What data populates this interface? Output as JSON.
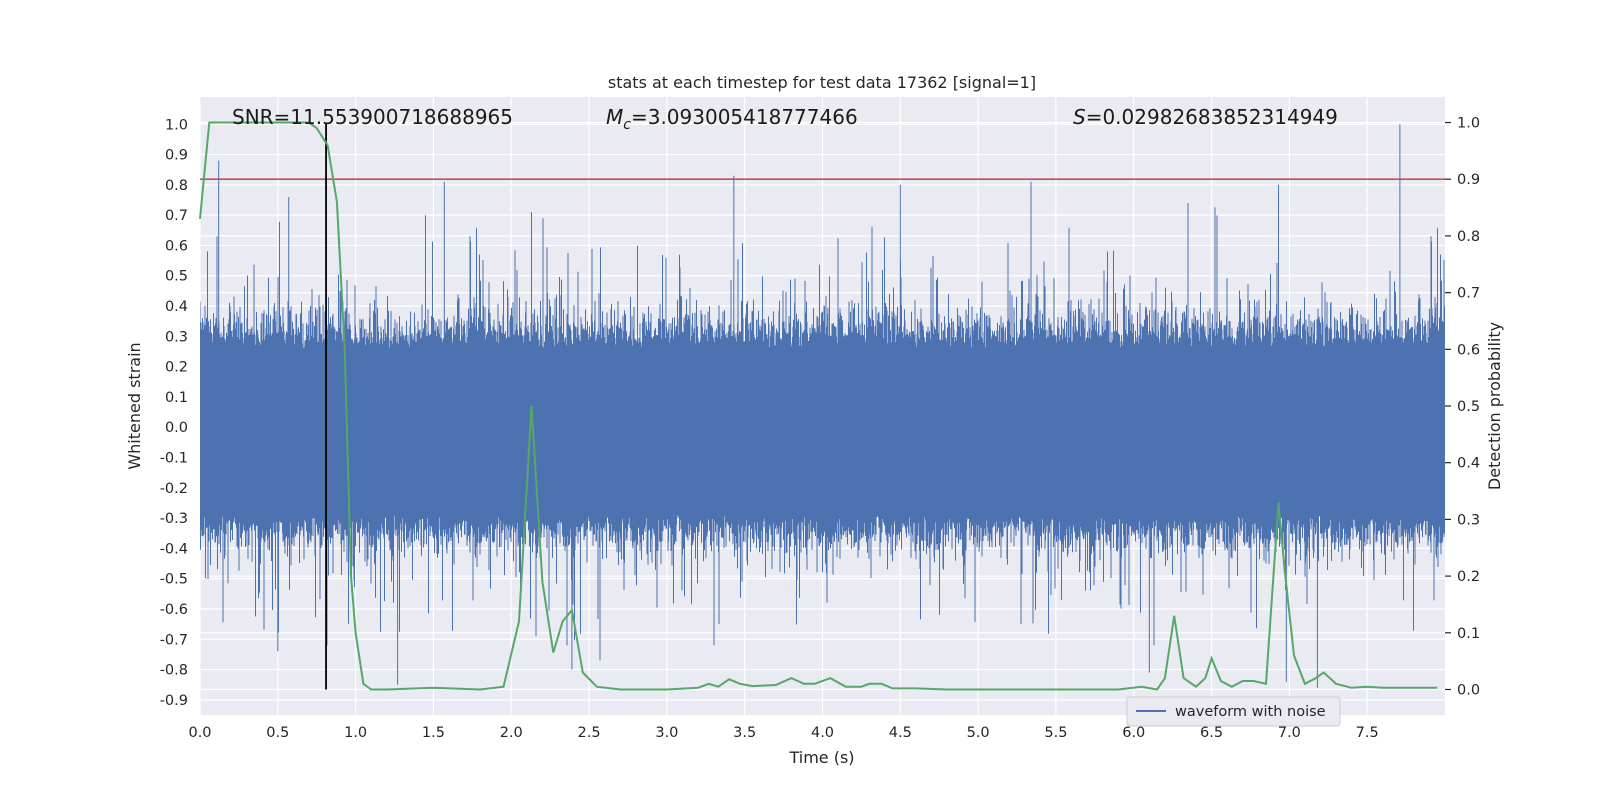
{
  "chart_data": {
    "type": "line",
    "title": "stats at each timestep for test data 17362 [signal=1]",
    "xlabel": "Time (s)",
    "ylabel": "Whitened strain",
    "y2label": "Detection probability",
    "xlim": [
      0.0,
      8.0
    ],
    "ylim": [
      -0.95,
      1.09
    ],
    "y2lim": [
      -0.045,
      1.045
    ],
    "grid": true,
    "legend_placement": "lower-right",
    "x_ticks": [
      "0.0",
      "0.5",
      "1.0",
      "1.5",
      "2.0",
      "2.5",
      "3.0",
      "3.5",
      "4.0",
      "4.5",
      "5.0",
      "5.5",
      "6.0",
      "6.5",
      "7.0",
      "7.5"
    ],
    "y_ticks": [
      "1.0",
      "0.9",
      "0.8",
      "0.7",
      "0.6",
      "0.5",
      "0.4",
      "0.3",
      "0.2",
      "0.1",
      "0.0",
      "-0.1",
      "-0.2",
      "-0.3",
      "-0.4",
      "-0.5",
      "-0.6",
      "-0.7",
      "-0.8",
      "-0.9"
    ],
    "y2_ticks": [
      "1.0",
      "0.9",
      "0.8",
      "0.7",
      "0.6",
      "0.5",
      "0.4",
      "0.3",
      "0.2",
      "0.1",
      "0.0"
    ],
    "annotations": {
      "snr": "SNR=11.553900718688965",
      "mc_symbol": "M",
      "mc_subscript": "c",
      "mc_value": "=3.093005418777466",
      "s_symbol": "S",
      "s_value": "=0.02982683852314949"
    },
    "threshold_y2": 0.9,
    "marker_time": 0.81,
    "colors": {
      "waveform": "#4c72b0",
      "probability": "#55a868",
      "threshold": "#c44e52",
      "marker": "#000000",
      "plot_bg": "#eaeaf2",
      "grid": "#ffffff"
    },
    "series": [
      {
        "name": "waveform with noise",
        "summary": {
          "peaks_positive": [
            [
              0.12,
              0.88
            ],
            [
              1.57,
              0.81
            ],
            [
              3.43,
              0.83
            ],
            [
              4.5,
              0.8
            ],
            [
              5.34,
              0.81
            ],
            [
              6.93,
              0.8
            ],
            [
              7.71,
              1.0
            ],
            [
              2.13,
              0.71
            ],
            [
              0.57,
              0.76
            ]
          ],
          "peaks_negative": [
            [
              0.5,
              -0.74
            ],
            [
              1.27,
              -0.85
            ],
            [
              2.39,
              -0.8
            ],
            [
              2.57,
              -0.77
            ],
            [
              6.1,
              -0.81
            ],
            [
              6.98,
              -0.84
            ],
            [
              7.18,
              -0.86
            ]
          ]
        }
      },
      {
        "name": "",
        "x": [
          0.0,
          0.06,
          0.1,
          0.2,
          0.3,
          0.4,
          0.5,
          0.6,
          0.7,
          0.75,
          0.82,
          0.88,
          0.93,
          0.97,
          1.0,
          1.05,
          1.1,
          1.2,
          1.5,
          1.8,
          1.95,
          2.05,
          2.13,
          2.2,
          2.27,
          2.33,
          2.39,
          2.46,
          2.55,
          2.7,
          3.0,
          3.2,
          3.27,
          3.33,
          3.4,
          3.47,
          3.55,
          3.7,
          3.8,
          3.88,
          3.95,
          4.05,
          4.15,
          4.25,
          4.3,
          4.38,
          4.45,
          4.6,
          4.8,
          5.2,
          5.9,
          6.05,
          6.15,
          6.2,
          6.26,
          6.32,
          6.4,
          6.46,
          6.5,
          6.56,
          6.63,
          6.7,
          6.77,
          6.85,
          6.93,
          6.97,
          7.03,
          7.1,
          7.17,
          7.22,
          7.3,
          7.4,
          7.5,
          7.6,
          7.7,
          7.8,
          7.95
        ],
        "values": [
          0.83,
          1.0,
          1.0,
          1.0,
          1.0,
          1.0,
          1.0,
          1.0,
          1.0,
          0.99,
          0.96,
          0.86,
          0.6,
          0.2,
          0.1,
          0.01,
          0.0,
          0.0,
          0.003,
          0.0,
          0.005,
          0.12,
          0.5,
          0.19,
          0.065,
          0.12,
          0.14,
          0.03,
          0.005,
          0.0,
          0.0,
          0.003,
          0.01,
          0.005,
          0.018,
          0.01,
          0.006,
          0.008,
          0.02,
          0.01,
          0.01,
          0.02,
          0.005,
          0.005,
          0.01,
          0.01,
          0.002,
          0.002,
          0.0,
          0.0,
          0.0,
          0.005,
          0.0,
          0.02,
          0.13,
          0.02,
          0.005,
          0.02,
          0.055,
          0.015,
          0.005,
          0.015,
          0.015,
          0.01,
          0.33,
          0.21,
          0.06,
          0.01,
          0.02,
          0.03,
          0.01,
          0.003,
          0.005,
          0.003,
          0.003,
          0.003,
          0.003
        ]
      }
    ]
  },
  "legend": {
    "label": "waveform with noise"
  }
}
